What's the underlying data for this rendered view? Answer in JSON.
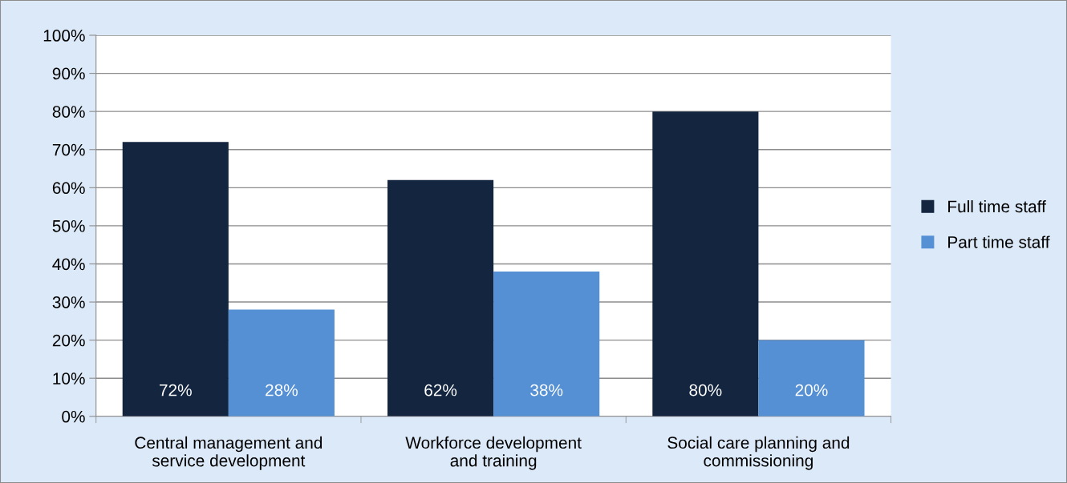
{
  "chart_data": {
    "type": "bar",
    "categories": [
      "Central management and\nservice development",
      "Workforce development\nand training",
      "Social care planning and\ncommissioning"
    ],
    "series": [
      {
        "name": "Full time staff",
        "color": "#14253f",
        "values": [
          72,
          62,
          80
        ],
        "value_labels": [
          "72%",
          "62%",
          "80%"
        ]
      },
      {
        "name": "Part time staff",
        "color": "#5590d5",
        "values": [
          28,
          38,
          20
        ],
        "value_labels": [
          "28%",
          "38%",
          "20%"
        ]
      }
    ],
    "ylim": [
      0,
      100
    ],
    "yticks": [
      {
        "value": 0,
        "label": "0%"
      },
      {
        "value": 10,
        "label": "10%"
      },
      {
        "value": 20,
        "label": "20%"
      },
      {
        "value": 30,
        "label": "30%"
      },
      {
        "value": 40,
        "label": "40%"
      },
      {
        "value": 50,
        "label": "50%"
      },
      {
        "value": 60,
        "label": "60%"
      },
      {
        "value": 70,
        "label": "70%"
      },
      {
        "value": 80,
        "label": "80%"
      },
      {
        "value": 90,
        "label": "90%"
      },
      {
        "value": 100,
        "label": "100%"
      }
    ],
    "grid": "y",
    "legend": "right"
  }
}
